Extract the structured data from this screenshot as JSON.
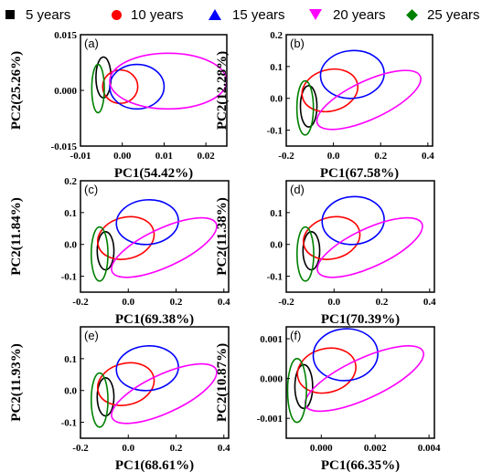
{
  "legend": [
    {
      "label": "5 years",
      "color": "#000000",
      "marker": "square"
    },
    {
      "label": "10 years",
      "color": "#ff0000",
      "marker": "circle"
    },
    {
      "label": "15 years",
      "color": "#0000ff",
      "marker": "triangle-up"
    },
    {
      "label": "20 years",
      "color": "#ff00ff",
      "marker": "triangle-down"
    },
    {
      "label": "25 years",
      "color": "#008000",
      "marker": "diamond"
    }
  ],
  "chart_data": [
    {
      "type": "scatter",
      "panel_label": "(a)",
      "xlabel": "PC1(54.42%)",
      "ylabel": "PC2(25.26%)",
      "xlim": [
        -0.01,
        0.025
      ],
      "ylim": [
        -0.015,
        0.015
      ],
      "xticks": [
        -0.01,
        0.0,
        0.01,
        0.02
      ],
      "xtick_labels": [
        "-0.01",
        "0.00",
        "0.01",
        "0.02"
      ],
      "yticks": [
        -0.015,
        0.0,
        0.015
      ],
      "ytick_labels": [
        "-0.015",
        "0.000",
        "0.015"
      ],
      "ellipses": [
        {
          "series": "5 years",
          "cx": -0.0045,
          "cy": 0.0035,
          "rx": 0.0018,
          "ry": 0.0055,
          "angle": 0
        },
        {
          "series": "10 years",
          "cx": -0.0005,
          "cy": 0.001,
          "rx": 0.0042,
          "ry": 0.0045,
          "angle": 0
        },
        {
          "series": "15 years",
          "cx": 0.0035,
          "cy": 0.001,
          "rx": 0.0065,
          "ry": 0.006,
          "angle": 0
        },
        {
          "series": "20 years",
          "cx": 0.011,
          "cy": 0.0025,
          "rx": 0.014,
          "ry": 0.0075,
          "angle": 0
        },
        {
          "series": "25 years",
          "cx": -0.0058,
          "cy": 0.0005,
          "rx": 0.0015,
          "ry": 0.0065,
          "angle": 0
        }
      ]
    },
    {
      "type": "scatter",
      "panel_label": "(b)",
      "xlabel": "PC1(67.58%)",
      "ylabel": "PC2(12.28%)",
      "xlim": [
        -0.2,
        0.42
      ],
      "ylim": [
        -0.15,
        0.2
      ],
      "xticks": [
        -0.2,
        0.0,
        0.2,
        0.4
      ],
      "xtick_labels": [
        "-0.2",
        "0.0",
        "0.2",
        "0.4"
      ],
      "yticks": [
        -0.1,
        0.0,
        0.1,
        0.2
      ],
      "ytick_labels": [
        "-0.1",
        "0.0",
        "0.1",
        "0.2"
      ],
      "ellipses": [
        {
          "series": "5 years",
          "cx": -0.105,
          "cy": -0.025,
          "rx": 0.035,
          "ry": 0.065,
          "angle": 0
        },
        {
          "series": "10 years",
          "cx": -0.015,
          "cy": 0.025,
          "rx": 0.12,
          "ry": 0.065,
          "angle": -15
        },
        {
          "series": "15 years",
          "cx": 0.08,
          "cy": 0.075,
          "rx": 0.135,
          "ry": 0.075,
          "angle": -5
        },
        {
          "series": "20 years",
          "cx": 0.15,
          "cy": -0.005,
          "rx": 0.24,
          "ry": 0.06,
          "angle": -25
        },
        {
          "series": "25 years",
          "cx": -0.12,
          "cy": -0.03,
          "rx": 0.035,
          "ry": 0.085,
          "angle": 0
        }
      ]
    },
    {
      "type": "scatter",
      "panel_label": "(c)",
      "xlabel": "PC1(69.38%)",
      "ylabel": "PC2(11.84%)",
      "xlim": [
        -0.2,
        0.42
      ],
      "ylim": [
        -0.15,
        0.2
      ],
      "xticks": [
        -0.2,
        0.0,
        0.2,
        0.4
      ],
      "xtick_labels": [
        "-0.2",
        "0.0",
        "0.2",
        "0.4"
      ],
      "yticks": [
        -0.1,
        0.0,
        0.1,
        0.2
      ],
      "ytick_labels": [
        "-0.1",
        "0.0",
        "0.1",
        "0.2"
      ],
      "ellipses": [
        {
          "series": "5 years",
          "cx": -0.095,
          "cy": -0.02,
          "rx": 0.035,
          "ry": 0.06,
          "angle": 0
        },
        {
          "series": "10 years",
          "cx": -0.01,
          "cy": 0.02,
          "rx": 0.12,
          "ry": 0.065,
          "angle": -15
        },
        {
          "series": "15 years",
          "cx": 0.08,
          "cy": 0.07,
          "rx": 0.13,
          "ry": 0.07,
          "angle": -5
        },
        {
          "series": "20 years",
          "cx": 0.15,
          "cy": -0.01,
          "rx": 0.24,
          "ry": 0.06,
          "angle": -25
        },
        {
          "series": "25 years",
          "cx": -0.12,
          "cy": -0.03,
          "rx": 0.035,
          "ry": 0.085,
          "angle": 0
        }
      ]
    },
    {
      "type": "scatter",
      "panel_label": "(d)",
      "xlabel": "PC1(70.39%)",
      "ylabel": "PC2(11.38%)",
      "xlim": [
        -0.2,
        0.42
      ],
      "ylim": [
        -0.15,
        0.2
      ],
      "xticks": [
        -0.2,
        0.0,
        0.2,
        0.4
      ],
      "xtick_labels": [
        "-0.2",
        "0.0",
        "0.2",
        "0.4"
      ],
      "yticks": [
        -0.1,
        0.0,
        0.1
      ],
      "ytick_labels": [
        "-0.1",
        "0.0",
        "0.1"
      ],
      "ellipses": [
        {
          "series": "5 years",
          "cx": -0.095,
          "cy": -0.02,
          "rx": 0.035,
          "ry": 0.06,
          "angle": 0
        },
        {
          "series": "10 years",
          "cx": -0.01,
          "cy": 0.02,
          "rx": 0.12,
          "ry": 0.065,
          "angle": -15
        },
        {
          "series": "15 years",
          "cx": 0.08,
          "cy": 0.075,
          "rx": 0.13,
          "ry": 0.075,
          "angle": -5
        },
        {
          "series": "20 years",
          "cx": 0.15,
          "cy": -0.01,
          "rx": 0.24,
          "ry": 0.06,
          "angle": -25
        },
        {
          "series": "25 years",
          "cx": -0.12,
          "cy": -0.03,
          "rx": 0.035,
          "ry": 0.085,
          "angle": 0
        }
      ]
    },
    {
      "type": "scatter",
      "panel_label": "(e)",
      "xlabel": "PC1(68.61%)",
      "ylabel": "PC2(11.93%)",
      "xlim": [
        -0.2,
        0.42
      ],
      "ylim": [
        -0.15,
        0.2
      ],
      "xticks": [
        -0.2,
        0.0,
        0.2,
        0.4
      ],
      "xtick_labels": [
        "-0.2",
        "0.0",
        "0.2",
        "0.4"
      ],
      "yticks": [
        -0.1,
        0.0,
        0.1
      ],
      "ytick_labels": [
        "-0.1",
        "0.0",
        "0.1"
      ],
      "ellipses": [
        {
          "series": "5 years",
          "cx": -0.095,
          "cy": -0.02,
          "rx": 0.035,
          "ry": 0.06,
          "angle": 0
        },
        {
          "series": "10 years",
          "cx": -0.01,
          "cy": 0.02,
          "rx": 0.12,
          "ry": 0.065,
          "angle": -15
        },
        {
          "series": "15 years",
          "cx": 0.08,
          "cy": 0.07,
          "rx": 0.13,
          "ry": 0.07,
          "angle": -5
        },
        {
          "series": "20 years",
          "cx": 0.15,
          "cy": -0.01,
          "rx": 0.24,
          "ry": 0.06,
          "angle": -25
        },
        {
          "series": "25 years",
          "cx": -0.12,
          "cy": -0.03,
          "rx": 0.035,
          "ry": 0.085,
          "angle": 0
        }
      ]
    },
    {
      "type": "scatter",
      "panel_label": "(f)",
      "xlabel": "PC1(66.35%)",
      "ylabel": "PC2(10.87%)",
      "xlim": [
        -0.0013,
        0.0042
      ],
      "ylim": [
        -0.0015,
        0.0013
      ],
      "xticks": [
        0.0,
        0.002,
        0.004
      ],
      "xtick_labels": [
        "0.000",
        "0.002",
        "0.004"
      ],
      "yticks": [
        -0.001,
        0.0,
        0.001
      ],
      "ytick_labels": [
        "-0.001",
        "0.000",
        "0.001"
      ],
      "ellipses": [
        {
          "series": "5 years",
          "cx": -0.00065,
          "cy": -0.0002,
          "rx": 0.00033,
          "ry": 0.00055,
          "angle": 0
        },
        {
          "series": "10 years",
          "cx": 0.0002,
          "cy": 0.0002,
          "rx": 0.0011,
          "ry": 0.00055,
          "angle": -15
        },
        {
          "series": "15 years",
          "cx": 0.0009,
          "cy": 0.0006,
          "rx": 0.0012,
          "ry": 0.00065,
          "angle": -5
        },
        {
          "series": "20 years",
          "cx": 0.0016,
          "cy": 0.0,
          "rx": 0.0024,
          "ry": 0.0005,
          "angle": -25
        },
        {
          "series": "25 years",
          "cx": -0.0009,
          "cy": -0.0003,
          "rx": 0.00035,
          "ry": 0.0008,
          "angle": 0
        }
      ]
    }
  ]
}
